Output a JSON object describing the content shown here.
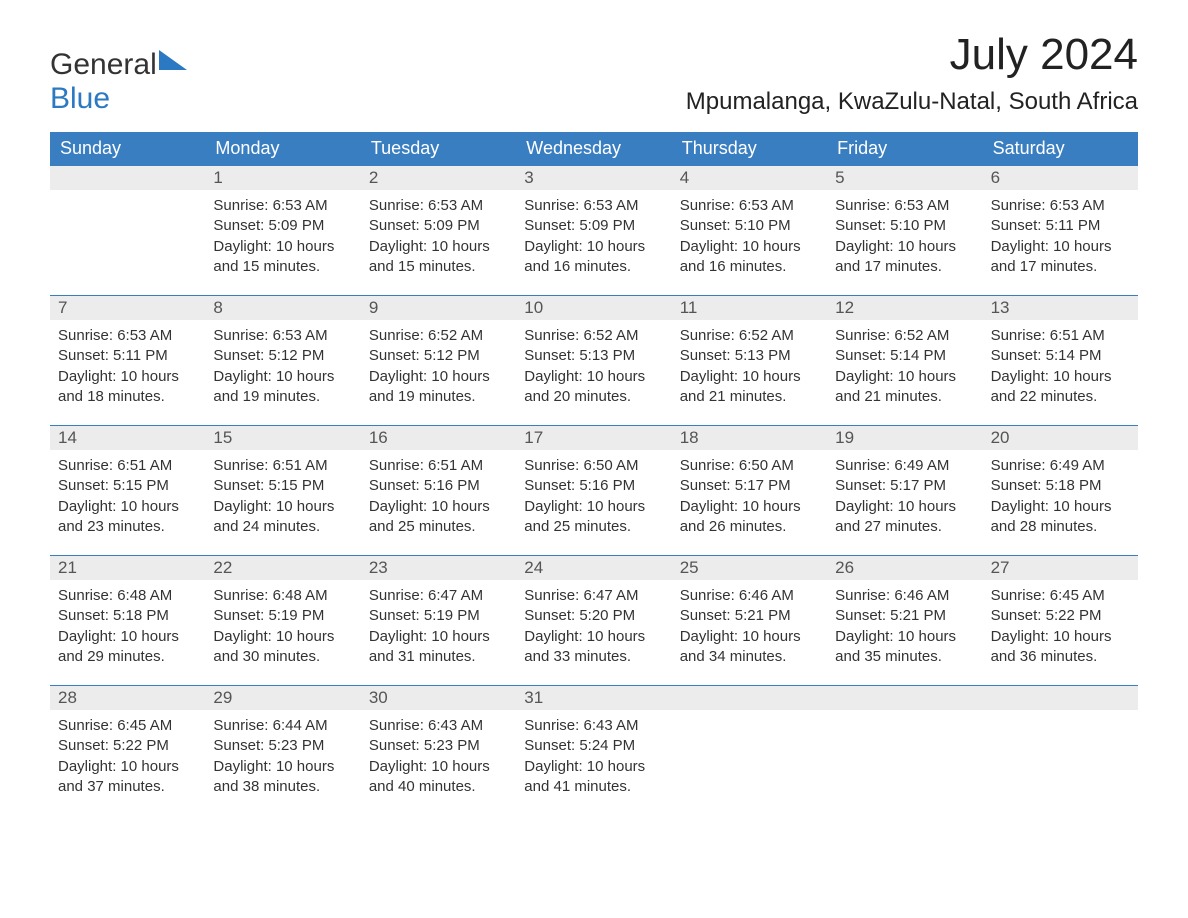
{
  "logo": {
    "text_general": "General",
    "text_blue": "Blue"
  },
  "title": "July 2024",
  "location": "Mpumalanga, KwaZulu-Natal, South Africa",
  "day_names": [
    "Sunday",
    "Monday",
    "Tuesday",
    "Wednesday",
    "Thursday",
    "Friday",
    "Saturday"
  ],
  "colors": {
    "header_bg": "#3a7ec2",
    "header_text": "#ffffff",
    "daynum_bg": "#ececec",
    "border": "#3a7ec2",
    "logo_blue": "#2b79c2",
    "body_text": "#333333"
  },
  "weeks": [
    [
      {
        "n": "",
        "sunrise": "",
        "sunset": "",
        "daylight1": "",
        "daylight2": ""
      },
      {
        "n": "1",
        "sunrise": "Sunrise: 6:53 AM",
        "sunset": "Sunset: 5:09 PM",
        "daylight1": "Daylight: 10 hours",
        "daylight2": "and 15 minutes."
      },
      {
        "n": "2",
        "sunrise": "Sunrise: 6:53 AM",
        "sunset": "Sunset: 5:09 PM",
        "daylight1": "Daylight: 10 hours",
        "daylight2": "and 15 minutes."
      },
      {
        "n": "3",
        "sunrise": "Sunrise: 6:53 AM",
        "sunset": "Sunset: 5:09 PM",
        "daylight1": "Daylight: 10 hours",
        "daylight2": "and 16 minutes."
      },
      {
        "n": "4",
        "sunrise": "Sunrise: 6:53 AM",
        "sunset": "Sunset: 5:10 PM",
        "daylight1": "Daylight: 10 hours",
        "daylight2": "and 16 minutes."
      },
      {
        "n": "5",
        "sunrise": "Sunrise: 6:53 AM",
        "sunset": "Sunset: 5:10 PM",
        "daylight1": "Daylight: 10 hours",
        "daylight2": "and 17 minutes."
      },
      {
        "n": "6",
        "sunrise": "Sunrise: 6:53 AM",
        "sunset": "Sunset: 5:11 PM",
        "daylight1": "Daylight: 10 hours",
        "daylight2": "and 17 minutes."
      }
    ],
    [
      {
        "n": "7",
        "sunrise": "Sunrise: 6:53 AM",
        "sunset": "Sunset: 5:11 PM",
        "daylight1": "Daylight: 10 hours",
        "daylight2": "and 18 minutes."
      },
      {
        "n": "8",
        "sunrise": "Sunrise: 6:53 AM",
        "sunset": "Sunset: 5:12 PM",
        "daylight1": "Daylight: 10 hours",
        "daylight2": "and 19 minutes."
      },
      {
        "n": "9",
        "sunrise": "Sunrise: 6:52 AM",
        "sunset": "Sunset: 5:12 PM",
        "daylight1": "Daylight: 10 hours",
        "daylight2": "and 19 minutes."
      },
      {
        "n": "10",
        "sunrise": "Sunrise: 6:52 AM",
        "sunset": "Sunset: 5:13 PM",
        "daylight1": "Daylight: 10 hours",
        "daylight2": "and 20 minutes."
      },
      {
        "n": "11",
        "sunrise": "Sunrise: 6:52 AM",
        "sunset": "Sunset: 5:13 PM",
        "daylight1": "Daylight: 10 hours",
        "daylight2": "and 21 minutes."
      },
      {
        "n": "12",
        "sunrise": "Sunrise: 6:52 AM",
        "sunset": "Sunset: 5:14 PM",
        "daylight1": "Daylight: 10 hours",
        "daylight2": "and 21 minutes."
      },
      {
        "n": "13",
        "sunrise": "Sunrise: 6:51 AM",
        "sunset": "Sunset: 5:14 PM",
        "daylight1": "Daylight: 10 hours",
        "daylight2": "and 22 minutes."
      }
    ],
    [
      {
        "n": "14",
        "sunrise": "Sunrise: 6:51 AM",
        "sunset": "Sunset: 5:15 PM",
        "daylight1": "Daylight: 10 hours",
        "daylight2": "and 23 minutes."
      },
      {
        "n": "15",
        "sunrise": "Sunrise: 6:51 AM",
        "sunset": "Sunset: 5:15 PM",
        "daylight1": "Daylight: 10 hours",
        "daylight2": "and 24 minutes."
      },
      {
        "n": "16",
        "sunrise": "Sunrise: 6:51 AM",
        "sunset": "Sunset: 5:16 PM",
        "daylight1": "Daylight: 10 hours",
        "daylight2": "and 25 minutes."
      },
      {
        "n": "17",
        "sunrise": "Sunrise: 6:50 AM",
        "sunset": "Sunset: 5:16 PM",
        "daylight1": "Daylight: 10 hours",
        "daylight2": "and 25 minutes."
      },
      {
        "n": "18",
        "sunrise": "Sunrise: 6:50 AM",
        "sunset": "Sunset: 5:17 PM",
        "daylight1": "Daylight: 10 hours",
        "daylight2": "and 26 minutes."
      },
      {
        "n": "19",
        "sunrise": "Sunrise: 6:49 AM",
        "sunset": "Sunset: 5:17 PM",
        "daylight1": "Daylight: 10 hours",
        "daylight2": "and 27 minutes."
      },
      {
        "n": "20",
        "sunrise": "Sunrise: 6:49 AM",
        "sunset": "Sunset: 5:18 PM",
        "daylight1": "Daylight: 10 hours",
        "daylight2": "and 28 minutes."
      }
    ],
    [
      {
        "n": "21",
        "sunrise": "Sunrise: 6:48 AM",
        "sunset": "Sunset: 5:18 PM",
        "daylight1": "Daylight: 10 hours",
        "daylight2": "and 29 minutes."
      },
      {
        "n": "22",
        "sunrise": "Sunrise: 6:48 AM",
        "sunset": "Sunset: 5:19 PM",
        "daylight1": "Daylight: 10 hours",
        "daylight2": "and 30 minutes."
      },
      {
        "n": "23",
        "sunrise": "Sunrise: 6:47 AM",
        "sunset": "Sunset: 5:19 PM",
        "daylight1": "Daylight: 10 hours",
        "daylight2": "and 31 minutes."
      },
      {
        "n": "24",
        "sunrise": "Sunrise: 6:47 AM",
        "sunset": "Sunset: 5:20 PM",
        "daylight1": "Daylight: 10 hours",
        "daylight2": "and 33 minutes."
      },
      {
        "n": "25",
        "sunrise": "Sunrise: 6:46 AM",
        "sunset": "Sunset: 5:21 PM",
        "daylight1": "Daylight: 10 hours",
        "daylight2": "and 34 minutes."
      },
      {
        "n": "26",
        "sunrise": "Sunrise: 6:46 AM",
        "sunset": "Sunset: 5:21 PM",
        "daylight1": "Daylight: 10 hours",
        "daylight2": "and 35 minutes."
      },
      {
        "n": "27",
        "sunrise": "Sunrise: 6:45 AM",
        "sunset": "Sunset: 5:22 PM",
        "daylight1": "Daylight: 10 hours",
        "daylight2": "and 36 minutes."
      }
    ],
    [
      {
        "n": "28",
        "sunrise": "Sunrise: 6:45 AM",
        "sunset": "Sunset: 5:22 PM",
        "daylight1": "Daylight: 10 hours",
        "daylight2": "and 37 minutes."
      },
      {
        "n": "29",
        "sunrise": "Sunrise: 6:44 AM",
        "sunset": "Sunset: 5:23 PM",
        "daylight1": "Daylight: 10 hours",
        "daylight2": "and 38 minutes."
      },
      {
        "n": "30",
        "sunrise": "Sunrise: 6:43 AM",
        "sunset": "Sunset: 5:23 PM",
        "daylight1": "Daylight: 10 hours",
        "daylight2": "and 40 minutes."
      },
      {
        "n": "31",
        "sunrise": "Sunrise: 6:43 AM",
        "sunset": "Sunset: 5:24 PM",
        "daylight1": "Daylight: 10 hours",
        "daylight2": "and 41 minutes."
      },
      {
        "n": "",
        "sunrise": "",
        "sunset": "",
        "daylight1": "",
        "daylight2": ""
      },
      {
        "n": "",
        "sunrise": "",
        "sunset": "",
        "daylight1": "",
        "daylight2": ""
      },
      {
        "n": "",
        "sunrise": "",
        "sunset": "",
        "daylight1": "",
        "daylight2": ""
      }
    ]
  ]
}
